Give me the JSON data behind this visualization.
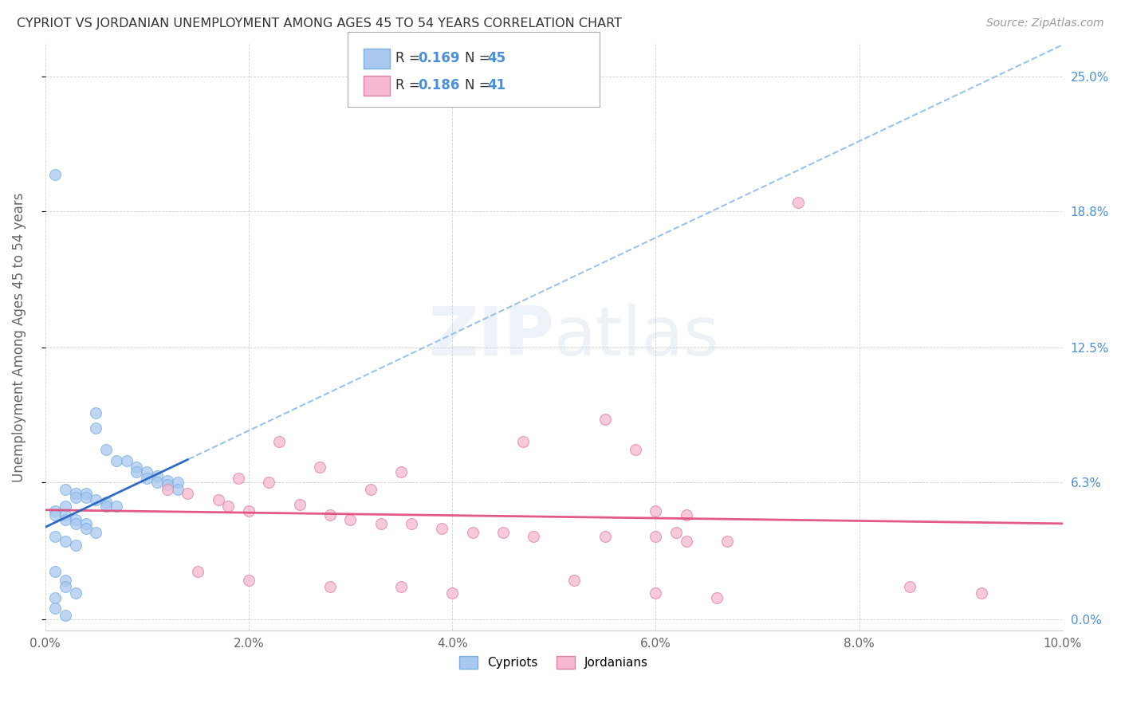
{
  "title": "CYPRIOT VS JORDANIAN UNEMPLOYMENT AMONG AGES 45 TO 54 YEARS CORRELATION CHART",
  "source": "Source: ZipAtlas.com",
  "ylabel_label": "Unemployment Among Ages 45 to 54 years",
  "xmin": 0.0,
  "xmax": 0.1,
  "ymin": -0.005,
  "ymax": 0.265,
  "ytick_vals": [
    0.0,
    0.063,
    0.125,
    0.188,
    0.25
  ],
  "ytick_labels": [
    "0.0%",
    "6.3%",
    "12.5%",
    "18.8%",
    "25.0%"
  ],
  "xtick_vals": [
    0.0,
    0.02,
    0.04,
    0.06,
    0.08,
    0.1
  ],
  "xtick_labels": [
    "0.0%",
    "2.0%",
    "4.0%",
    "6.0%",
    "8.0%",
    "10.0%"
  ],
  "cypriot_color": "#a8c8f0",
  "cypriot_edge_color": "#7ab0e0",
  "jordanian_color": "#f5b8d0",
  "jordanian_edge_color": "#e080a8",
  "dashed_line_color": "#90bce8",
  "solid_blue_color": "#2060c0",
  "solid_pink_color": "#e04878",
  "R_cypriot": 0.169,
  "N_cypriot": 45,
  "R_jordanian": 0.186,
  "N_jordanian": 41,
  "watermark": "ZIPatlas",
  "cypriot_points": [
    [
      0.001,
      0.205
    ],
    [
      0.005,
      0.095
    ],
    [
      0.005,
      0.088
    ],
    [
      0.006,
      0.078
    ],
    [
      0.007,
      0.073
    ],
    [
      0.008,
      0.073
    ],
    [
      0.009,
      0.07
    ],
    [
      0.009,
      0.068
    ],
    [
      0.01,
      0.068
    ],
    [
      0.01,
      0.065
    ],
    [
      0.011,
      0.066
    ],
    [
      0.011,
      0.063
    ],
    [
      0.012,
      0.064
    ],
    [
      0.012,
      0.062
    ],
    [
      0.013,
      0.063
    ],
    [
      0.013,
      0.06
    ],
    [
      0.002,
      0.06
    ],
    [
      0.003,
      0.058
    ],
    [
      0.003,
      0.056
    ],
    [
      0.004,
      0.058
    ],
    [
      0.004,
      0.056
    ],
    [
      0.005,
      0.055
    ],
    [
      0.006,
      0.054
    ],
    [
      0.006,
      0.052
    ],
    [
      0.007,
      0.052
    ],
    [
      0.002,
      0.052
    ],
    [
      0.001,
      0.05
    ],
    [
      0.001,
      0.048
    ],
    [
      0.002,
      0.048
    ],
    [
      0.002,
      0.046
    ],
    [
      0.003,
      0.046
    ],
    [
      0.003,
      0.044
    ],
    [
      0.004,
      0.044
    ],
    [
      0.004,
      0.042
    ],
    [
      0.005,
      0.04
    ],
    [
      0.001,
      0.038
    ],
    [
      0.002,
      0.036
    ],
    [
      0.003,
      0.034
    ],
    [
      0.001,
      0.022
    ],
    [
      0.002,
      0.018
    ],
    [
      0.002,
      0.015
    ],
    [
      0.003,
      0.012
    ],
    [
      0.001,
      0.01
    ],
    [
      0.001,
      0.005
    ],
    [
      0.002,
      0.002
    ]
  ],
  "jordanian_points": [
    [
      0.074,
      0.192
    ],
    [
      0.055,
      0.092
    ],
    [
      0.023,
      0.082
    ],
    [
      0.047,
      0.082
    ],
    [
      0.058,
      0.078
    ],
    [
      0.027,
      0.07
    ],
    [
      0.035,
      0.068
    ],
    [
      0.019,
      0.065
    ],
    [
      0.022,
      0.063
    ],
    [
      0.012,
      0.06
    ],
    [
      0.032,
      0.06
    ],
    [
      0.014,
      0.058
    ],
    [
      0.017,
      0.055
    ],
    [
      0.025,
      0.053
    ],
    [
      0.018,
      0.052
    ],
    [
      0.02,
      0.05
    ],
    [
      0.028,
      0.048
    ],
    [
      0.03,
      0.046
    ],
    [
      0.033,
      0.044
    ],
    [
      0.036,
      0.044
    ],
    [
      0.039,
      0.042
    ],
    [
      0.042,
      0.04
    ],
    [
      0.045,
      0.04
    ],
    [
      0.048,
      0.038
    ],
    [
      0.055,
      0.038
    ],
    [
      0.06,
      0.038
    ],
    [
      0.062,
      0.04
    ],
    [
      0.063,
      0.036
    ],
    [
      0.067,
      0.036
    ],
    [
      0.06,
      0.05
    ],
    [
      0.063,
      0.048
    ],
    [
      0.015,
      0.022
    ],
    [
      0.02,
      0.018
    ],
    [
      0.028,
      0.015
    ],
    [
      0.035,
      0.015
    ],
    [
      0.052,
      0.018
    ],
    [
      0.04,
      0.012
    ],
    [
      0.06,
      0.012
    ],
    [
      0.066,
      0.01
    ],
    [
      0.085,
      0.015
    ],
    [
      0.092,
      0.012
    ]
  ]
}
